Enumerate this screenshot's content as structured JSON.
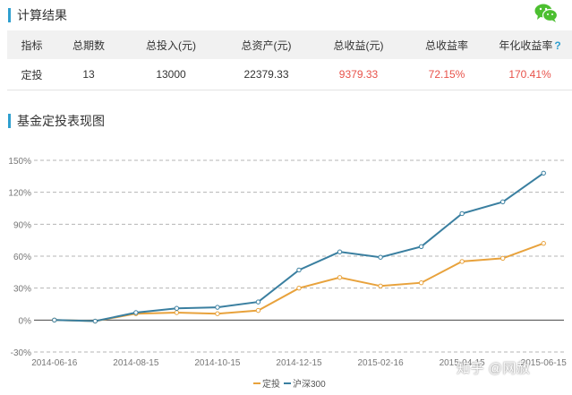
{
  "result_section": {
    "title": "计算结果"
  },
  "table": {
    "headers": [
      "指标",
      "总期数",
      "总投入(元)",
      "总资产(元)",
      "总收益(元)",
      "总收益率",
      "年化收益率"
    ],
    "help_glyph": "?",
    "row": [
      "定投",
      "13",
      "13000",
      "22379.33",
      "9379.33",
      "72.15%",
      "170.41%"
    ]
  },
  "chart_section": {
    "title": "基金定投表现图"
  },
  "colors": {
    "accent": "#2f9fcf",
    "dingtou": "#e8a23c",
    "hs300": "#3a7fa0",
    "red_value": "#e8524a"
  },
  "chart_data": {
    "type": "line",
    "x": [
      "2014-06-16",
      "2014-07-16",
      "2014-08-15",
      "2014-09-15",
      "2014-10-15",
      "2014-11-14",
      "2014-12-15",
      "2015-01-15",
      "2015-02-16",
      "2015-03-16",
      "2015-04-15",
      "2015-05-15",
      "2015-06-15"
    ],
    "x_tick_labels": [
      "2014-06-16",
      "2014-08-15",
      "2014-10-15",
      "2014-12-15",
      "2015-02-16",
      "2015-04-15",
      "2015-06-15"
    ],
    "y_tick_labels": [
      "150%",
      "120%",
      "90%",
      "60%",
      "30%",
      "0%",
      "-30%"
    ],
    "ylim": [
      -30,
      150
    ],
    "y_unit": "%",
    "grid": true,
    "legend_position": "bottom",
    "series": [
      {
        "name": "定投",
        "values": [
          0,
          -1,
          6,
          7,
          6,
          9,
          30,
          40,
          32,
          35,
          55,
          58,
          72
        ]
      },
      {
        "name": "沪深300",
        "values": [
          0,
          -1,
          7,
          11,
          12,
          17,
          47,
          64,
          59,
          69,
          100,
          111,
          138
        ]
      }
    ]
  },
  "watermark": "知乎 @网赦"
}
